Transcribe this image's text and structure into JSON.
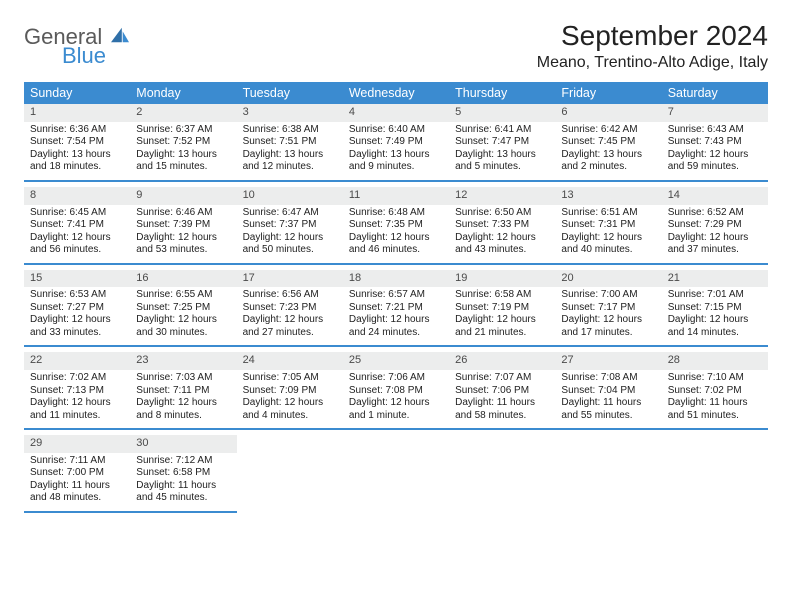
{
  "logo": {
    "general": "General",
    "blue": "Blue"
  },
  "title": "September 2024",
  "location": "Meano, Trentino-Alto Adige, Italy",
  "colors": {
    "accent": "#3b8bd0",
    "daynum_bg": "#eceded",
    "text": "#222222",
    "logo_gray": "#5a5a5a"
  },
  "weekdays": [
    "Sunday",
    "Monday",
    "Tuesday",
    "Wednesday",
    "Thursday",
    "Friday",
    "Saturday"
  ],
  "weeks": [
    [
      {
        "day": 1,
        "sunrise": "6:36 AM",
        "sunset": "7:54 PM",
        "daylight": "13 hours and 18 minutes."
      },
      {
        "day": 2,
        "sunrise": "6:37 AM",
        "sunset": "7:52 PM",
        "daylight": "13 hours and 15 minutes."
      },
      {
        "day": 3,
        "sunrise": "6:38 AM",
        "sunset": "7:51 PM",
        "daylight": "13 hours and 12 minutes."
      },
      {
        "day": 4,
        "sunrise": "6:40 AM",
        "sunset": "7:49 PM",
        "daylight": "13 hours and 9 minutes."
      },
      {
        "day": 5,
        "sunrise": "6:41 AM",
        "sunset": "7:47 PM",
        "daylight": "13 hours and 5 minutes."
      },
      {
        "day": 6,
        "sunrise": "6:42 AM",
        "sunset": "7:45 PM",
        "daylight": "13 hours and 2 minutes."
      },
      {
        "day": 7,
        "sunrise": "6:43 AM",
        "sunset": "7:43 PM",
        "daylight": "12 hours and 59 minutes."
      }
    ],
    [
      {
        "day": 8,
        "sunrise": "6:45 AM",
        "sunset": "7:41 PM",
        "daylight": "12 hours and 56 minutes."
      },
      {
        "day": 9,
        "sunrise": "6:46 AM",
        "sunset": "7:39 PM",
        "daylight": "12 hours and 53 minutes."
      },
      {
        "day": 10,
        "sunrise": "6:47 AM",
        "sunset": "7:37 PM",
        "daylight": "12 hours and 50 minutes."
      },
      {
        "day": 11,
        "sunrise": "6:48 AM",
        "sunset": "7:35 PM",
        "daylight": "12 hours and 46 minutes."
      },
      {
        "day": 12,
        "sunrise": "6:50 AM",
        "sunset": "7:33 PM",
        "daylight": "12 hours and 43 minutes."
      },
      {
        "day": 13,
        "sunrise": "6:51 AM",
        "sunset": "7:31 PM",
        "daylight": "12 hours and 40 minutes."
      },
      {
        "day": 14,
        "sunrise": "6:52 AM",
        "sunset": "7:29 PM",
        "daylight": "12 hours and 37 minutes."
      }
    ],
    [
      {
        "day": 15,
        "sunrise": "6:53 AM",
        "sunset": "7:27 PM",
        "daylight": "12 hours and 33 minutes."
      },
      {
        "day": 16,
        "sunrise": "6:55 AM",
        "sunset": "7:25 PM",
        "daylight": "12 hours and 30 minutes."
      },
      {
        "day": 17,
        "sunrise": "6:56 AM",
        "sunset": "7:23 PM",
        "daylight": "12 hours and 27 minutes."
      },
      {
        "day": 18,
        "sunrise": "6:57 AM",
        "sunset": "7:21 PM",
        "daylight": "12 hours and 24 minutes."
      },
      {
        "day": 19,
        "sunrise": "6:58 AM",
        "sunset": "7:19 PM",
        "daylight": "12 hours and 21 minutes."
      },
      {
        "day": 20,
        "sunrise": "7:00 AM",
        "sunset": "7:17 PM",
        "daylight": "12 hours and 17 minutes."
      },
      {
        "day": 21,
        "sunrise": "7:01 AM",
        "sunset": "7:15 PM",
        "daylight": "12 hours and 14 minutes."
      }
    ],
    [
      {
        "day": 22,
        "sunrise": "7:02 AM",
        "sunset": "7:13 PM",
        "daylight": "12 hours and 11 minutes."
      },
      {
        "day": 23,
        "sunrise": "7:03 AM",
        "sunset": "7:11 PM",
        "daylight": "12 hours and 8 minutes."
      },
      {
        "day": 24,
        "sunrise": "7:05 AM",
        "sunset": "7:09 PM",
        "daylight": "12 hours and 4 minutes."
      },
      {
        "day": 25,
        "sunrise": "7:06 AM",
        "sunset": "7:08 PM",
        "daylight": "12 hours and 1 minute."
      },
      {
        "day": 26,
        "sunrise": "7:07 AM",
        "sunset": "7:06 PM",
        "daylight": "11 hours and 58 minutes."
      },
      {
        "day": 27,
        "sunrise": "7:08 AM",
        "sunset": "7:04 PM",
        "daylight": "11 hours and 55 minutes."
      },
      {
        "day": 28,
        "sunrise": "7:10 AM",
        "sunset": "7:02 PM",
        "daylight": "11 hours and 51 minutes."
      }
    ],
    [
      {
        "day": 29,
        "sunrise": "7:11 AM",
        "sunset": "7:00 PM",
        "daylight": "11 hours and 48 minutes."
      },
      {
        "day": 30,
        "sunrise": "7:12 AM",
        "sunset": "6:58 PM",
        "daylight": "11 hours and 45 minutes."
      },
      null,
      null,
      null,
      null,
      null
    ]
  ],
  "labels": {
    "sunrise": "Sunrise:",
    "sunset": "Sunset:",
    "daylight": "Daylight:"
  }
}
